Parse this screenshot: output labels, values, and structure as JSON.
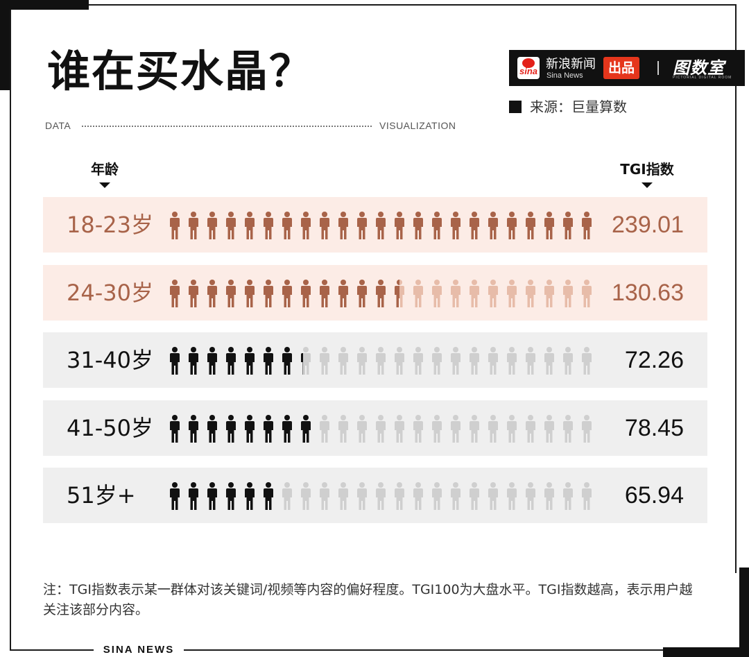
{
  "title": "谁在买水晶？",
  "subtitle_left": "DATA",
  "subtitle_right": "VISUALIZATION",
  "brand": {
    "name_cn": "新浪新闻",
    "name_en": "Sina News",
    "logo_text": "sina",
    "badge": "出品",
    "separator": "|",
    "room_name": "图数室",
    "room_en": "PICTORIAL DIGITAL ROOM"
  },
  "source": "来源：巨量算数",
  "column_headers": {
    "age": "年龄",
    "tgi": "TGI指数"
  },
  "chart_data": {
    "type": "bar",
    "categories": [
      "18-23岁",
      "24-30岁",
      "31-40岁",
      "41-50岁",
      "51岁+"
    ],
    "values": [
      239.01,
      130.63,
      72.26,
      78.45,
      65.94
    ],
    "value_labels": [
      "239.01",
      "130.63",
      "72.26",
      "78.45",
      "65.94"
    ],
    "icons_per_row": 23,
    "filled_icons": [
      23,
      12.5,
      7.25,
      8,
      6
    ],
    "ylabel": "TGI指数",
    "xlabel": "年龄"
  },
  "colors": {
    "highlight_bg": "#fcece6",
    "neutral_bg": "#efefef",
    "highlight_fill": "#a86349",
    "highlight_empty": "#e7bca9",
    "neutral_fill": "#111111",
    "neutral_empty": "#cfcfcf",
    "highlight_text": "#a86349",
    "neutral_text": "#111111"
  },
  "note": "注：TGI指数表示某一群体对该关键词/视频等内容的偏好程度。TGI100为大盘水平。TGI指数越高，表示用户越关注该部分内容。",
  "footer": "SINA NEWS"
}
